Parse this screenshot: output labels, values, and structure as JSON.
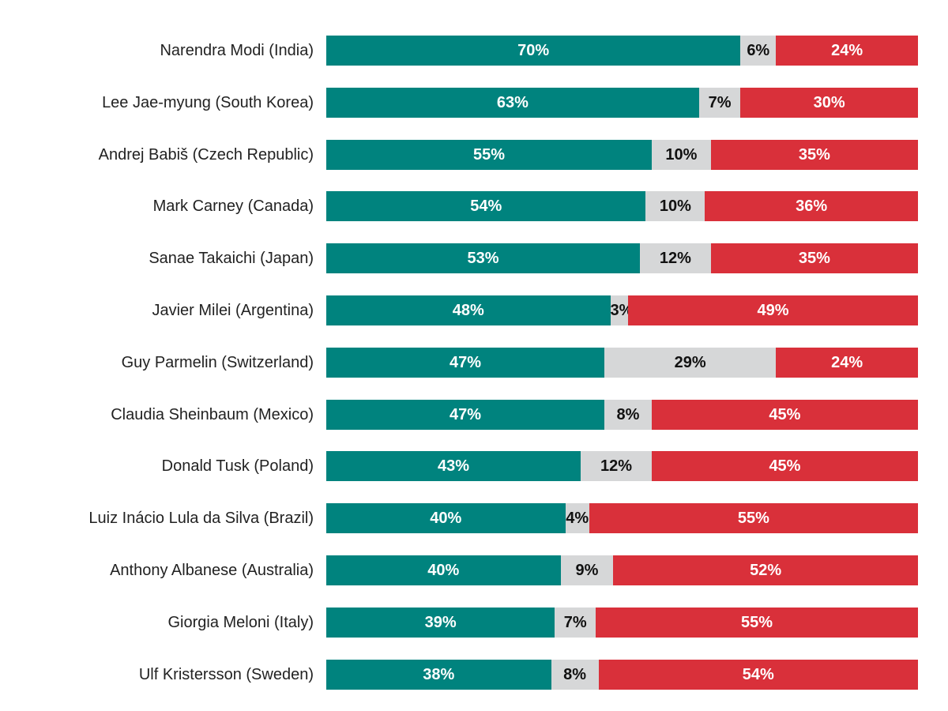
{
  "chart_data": {
    "type": "bar",
    "orientation": "horizontal",
    "stacked": true,
    "title": "",
    "xlabel": "",
    "ylabel": "",
    "categories": [
      "Narendra Modi (India)",
      "Lee Jae-myung (South Korea)",
      "Andrej Babiš (Czech Republic)",
      "Mark Carney (Canada)",
      "Sanae Takaichi (Japan)",
      "Javier Milei (Argentina)",
      "Guy Parmelin (Switzerland)",
      "Claudia Sheinbaum (Mexico)",
      "Donald Tusk (Poland)",
      "Luiz Inácio Lula da Silva (Brazil)",
      "Anthony Albanese (Australia)",
      "Giorgia Meloni (Italy)",
      "Ulf Kristersson (Sweden)"
    ],
    "series": [
      {
        "values": [
          70,
          63,
          55,
          54,
          53,
          48,
          47,
          47,
          43,
          40,
          40,
          39,
          38
        ],
        "color": "#00837e"
      },
      {
        "values": [
          6,
          7,
          10,
          10,
          12,
          3,
          29,
          8,
          12,
          4,
          9,
          7,
          8
        ],
        "color": "#d6d7d8"
      },
      {
        "values": [
          24,
          30,
          35,
          36,
          35,
          49,
          24,
          45,
          45,
          55,
          52,
          55,
          54
        ],
        "color": "#d9303a"
      }
    ],
    "value_format": "{v}%",
    "grid": false,
    "legend": "none"
  }
}
